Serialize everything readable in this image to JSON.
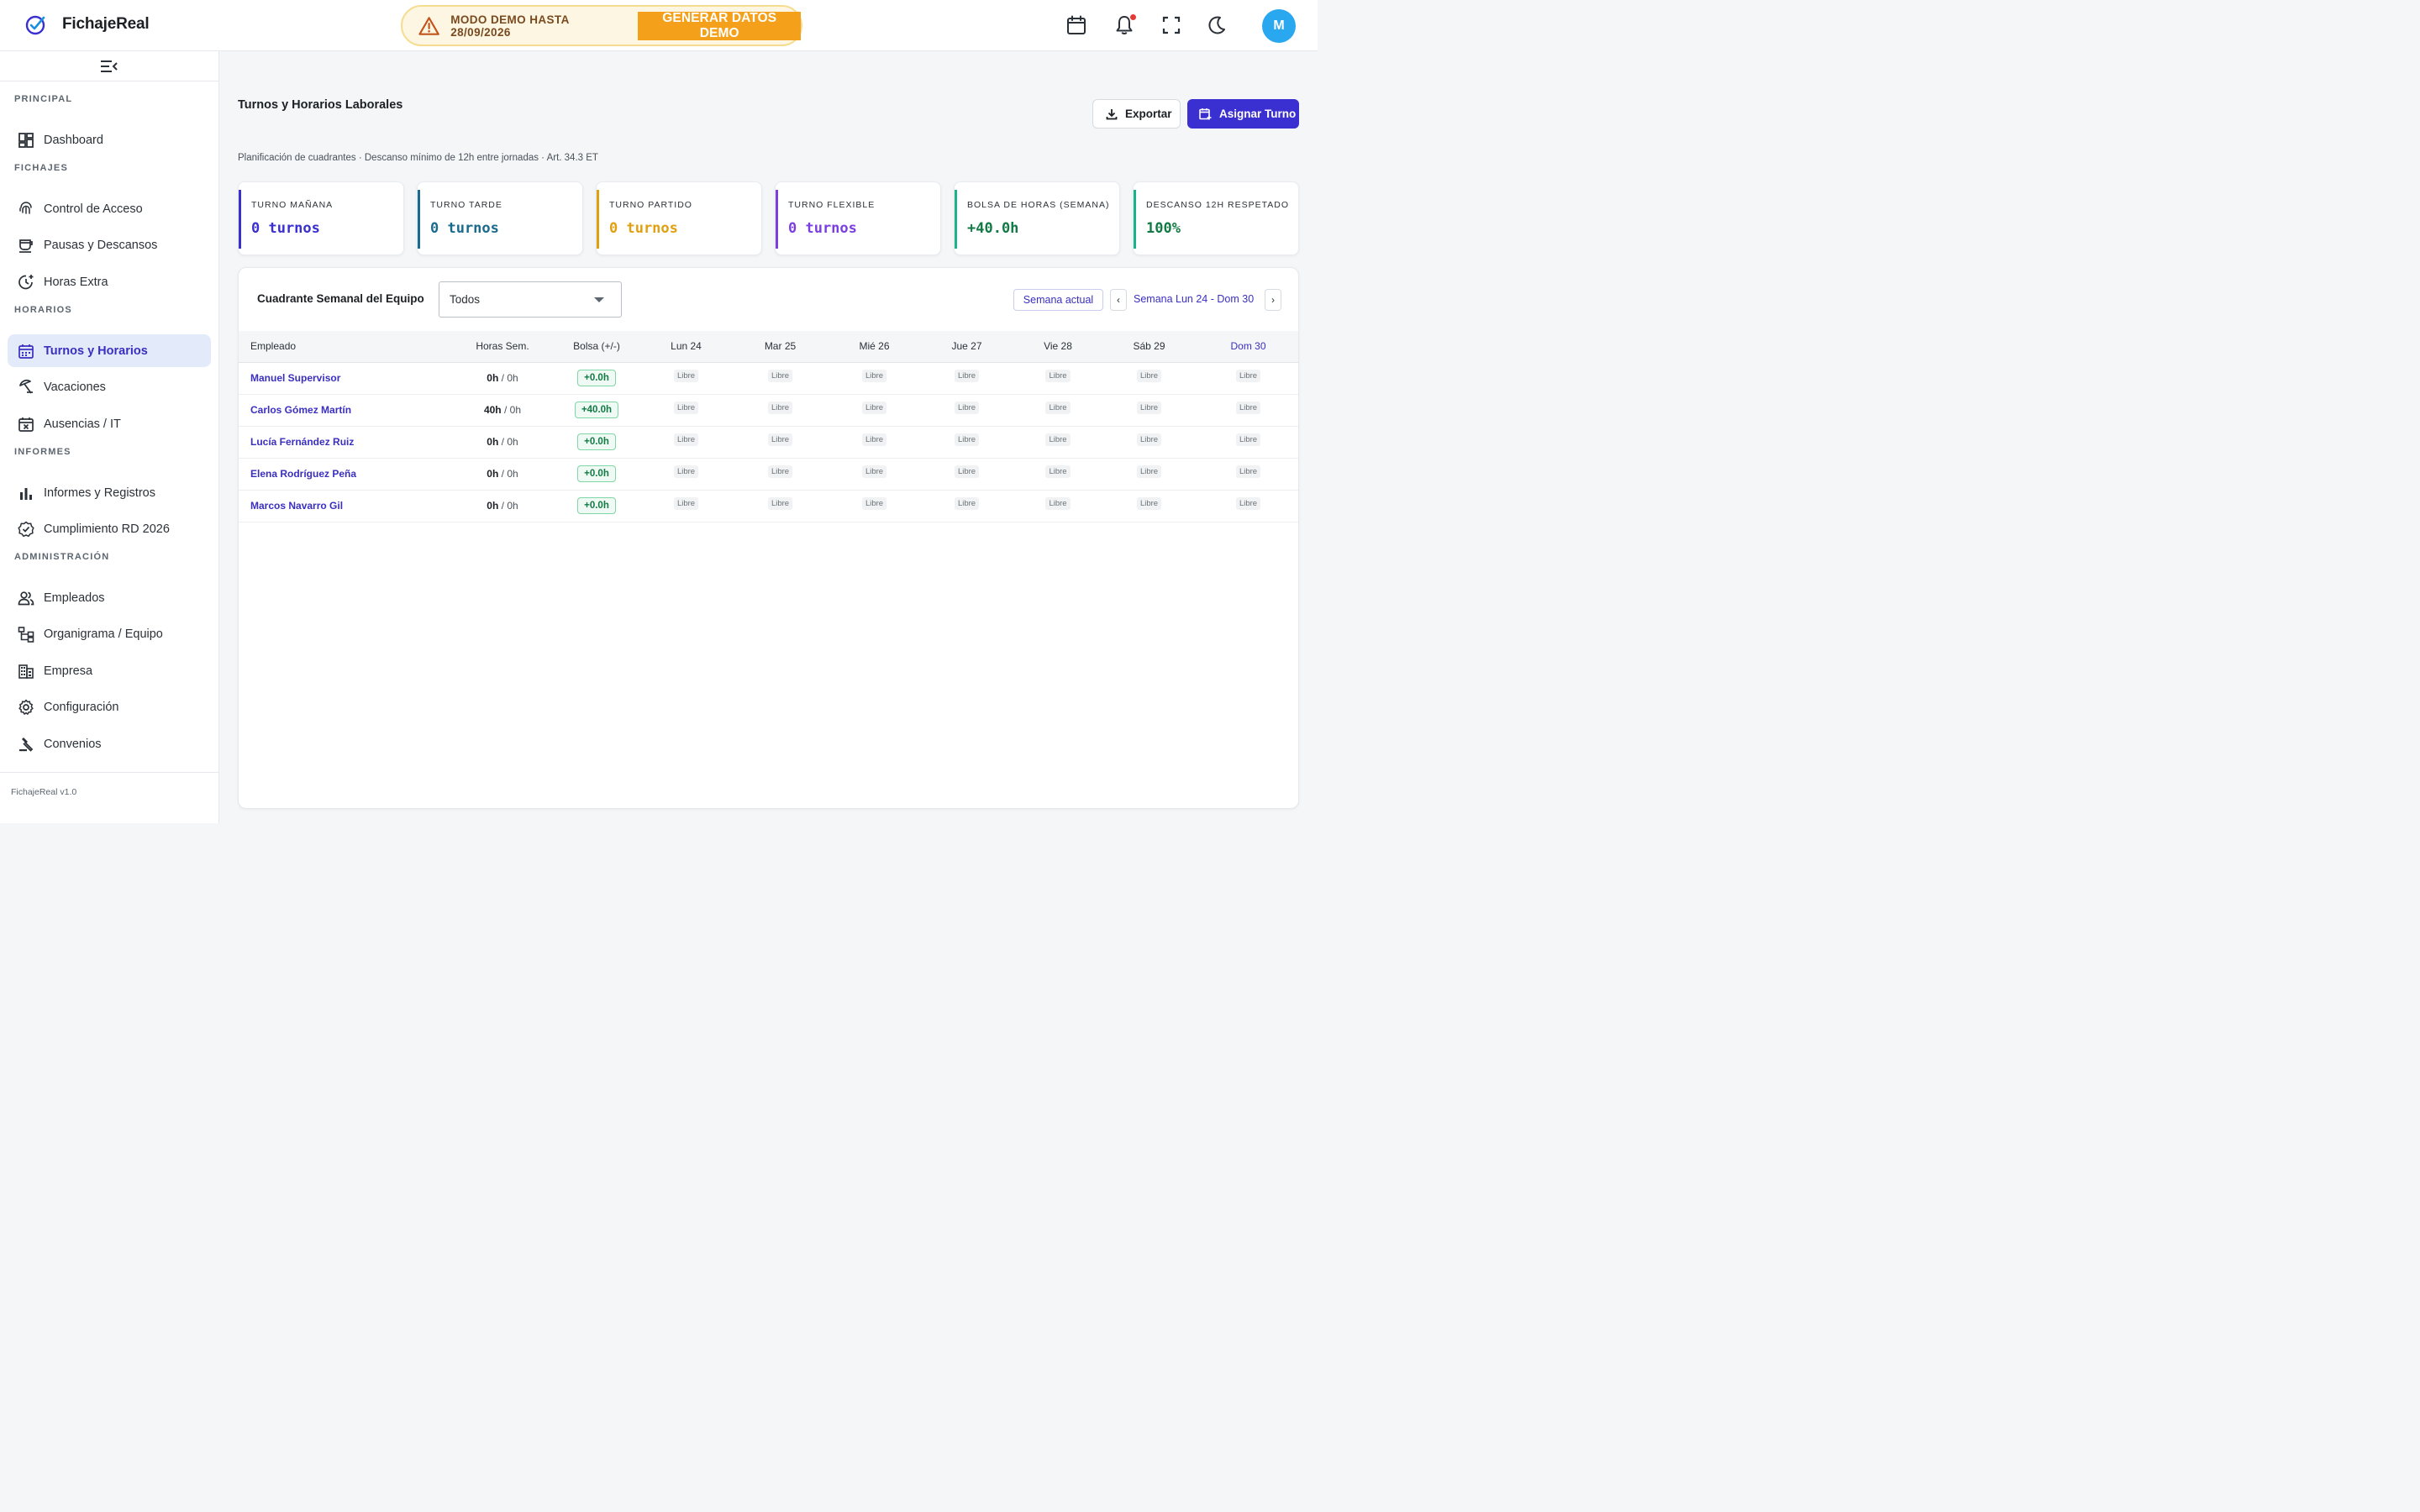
{
  "app": {
    "name": "FichajeReal",
    "version": "FichajeReal v1.0",
    "user_initial": "M"
  },
  "demo": {
    "text": "MODO DEMO HASTA 28/09/2026",
    "button": "GENERAR DATOS DEMO"
  },
  "colors": {
    "accent": "#3a2fd0",
    "link": "#3a2fc0",
    "morning": "#3a2fd0",
    "afternoon": "#1a6b8e",
    "split": "#e0a010",
    "flexible": "#7b3fe0",
    "green": "#127a45",
    "teal": "#1bb38a"
  },
  "sidebar": {
    "sections": {
      "principal": "PRINCIPAL",
      "fichajes": "FICHAJES",
      "horarios": "HORARIOS",
      "informes": "INFORMES",
      "administracion": "ADMINISTRACIÓN"
    },
    "items": [
      {
        "label": "Dashboard",
        "icon": "dashboard-icon"
      },
      {
        "label": "Control de Acceso",
        "icon": "fingerprint-icon"
      },
      {
        "label": "Pausas y Descansos",
        "icon": "coffee-icon"
      },
      {
        "label": "Horas Extra",
        "icon": "clock-plus-icon"
      },
      {
        "label": "Turnos y Horarios",
        "icon": "calendar-icon",
        "active": true
      },
      {
        "label": "Vacaciones",
        "icon": "beach-icon"
      },
      {
        "label": "Ausencias / IT",
        "icon": "calendar-x-icon"
      },
      {
        "label": "Informes y Registros",
        "icon": "bar-chart-icon"
      },
      {
        "label": "Cumplimiento RD 2026",
        "icon": "verified-icon"
      },
      {
        "label": "Empleados",
        "icon": "people-icon"
      },
      {
        "label": "Organigrama / Equipo",
        "icon": "org-chart-icon"
      },
      {
        "label": "Empresa",
        "icon": "building-icon"
      },
      {
        "label": "Configuración",
        "icon": "gear-icon"
      },
      {
        "label": "Convenios",
        "icon": "gavel-icon"
      }
    ]
  },
  "page": {
    "title": "Turnos y Horarios Laborales",
    "subtitle": "Planificación de cuadrantes · Descanso mínimo de 12h entre jornadas · Art. 34.3 ET",
    "export_label": "Exportar",
    "assign_label": "Asignar Turno"
  },
  "stats": [
    {
      "label": "TURNO MAÑANA",
      "value": "0 turnos",
      "color": "#3a2fd0"
    },
    {
      "label": "TURNO TARDE",
      "value": "0 turnos",
      "color": "#1a6b8e"
    },
    {
      "label": "TURNO PARTIDO",
      "value": "0 turnos",
      "color": "#e0a010"
    },
    {
      "label": "TURNO FLEXIBLE",
      "value": "0 turnos",
      "color": "#7b3fe0"
    },
    {
      "label": "BOLSA DE HORAS (SEMANA)",
      "value": "+40.0h",
      "color": "#127a45"
    },
    {
      "label": "DESCANSO 12H RESPETADO",
      "value": "100%",
      "color": "#127a45"
    }
  ],
  "schedule": {
    "title": "Cuadrante Semanal del Equipo",
    "filter_value": "Todos",
    "current_week_label": "Semana actual",
    "prev_label": "‹",
    "next_label": "›",
    "week_range": "Semana Lun 24 - Dom 30",
    "columns": [
      "Empleado",
      "Horas Sem.",
      "Bolsa (+/-)",
      "Lun 24",
      "Mar 25",
      "Mié 26",
      "Jue 27",
      "Vie 28",
      "Sáb 29",
      "Dom 30"
    ],
    "rows": [
      {
        "name": "Manuel Supervisor",
        "hours": "0h",
        "planned": "0h",
        "bag": "+0.0h",
        "days": [
          "Libre",
          "Libre",
          "Libre",
          "Libre",
          "Libre",
          "Libre",
          "Libre"
        ]
      },
      {
        "name": "Carlos Gómez Martín",
        "hours": "40h",
        "planned": "0h",
        "bag": "+40.0h",
        "days": [
          "Libre",
          "Libre",
          "Libre",
          "Libre",
          "Libre",
          "Libre",
          "Libre"
        ]
      },
      {
        "name": "Lucía Fernández Ruiz",
        "hours": "0h",
        "planned": "0h",
        "bag": "+0.0h",
        "days": [
          "Libre",
          "Libre",
          "Libre",
          "Libre",
          "Libre",
          "Libre",
          "Libre"
        ]
      },
      {
        "name": "Elena Rodríguez Peña",
        "hours": "0h",
        "planned": "0h",
        "bag": "+0.0h",
        "days": [
          "Libre",
          "Libre",
          "Libre",
          "Libre",
          "Libre",
          "Libre",
          "Libre"
        ]
      },
      {
        "name": "Marcos Navarro Gil",
        "hours": "0h",
        "planned": "0h",
        "bag": "+0.0h",
        "days": [
          "Libre",
          "Libre",
          "Libre",
          "Libre",
          "Libre",
          "Libre",
          "Libre"
        ]
      }
    ]
  }
}
